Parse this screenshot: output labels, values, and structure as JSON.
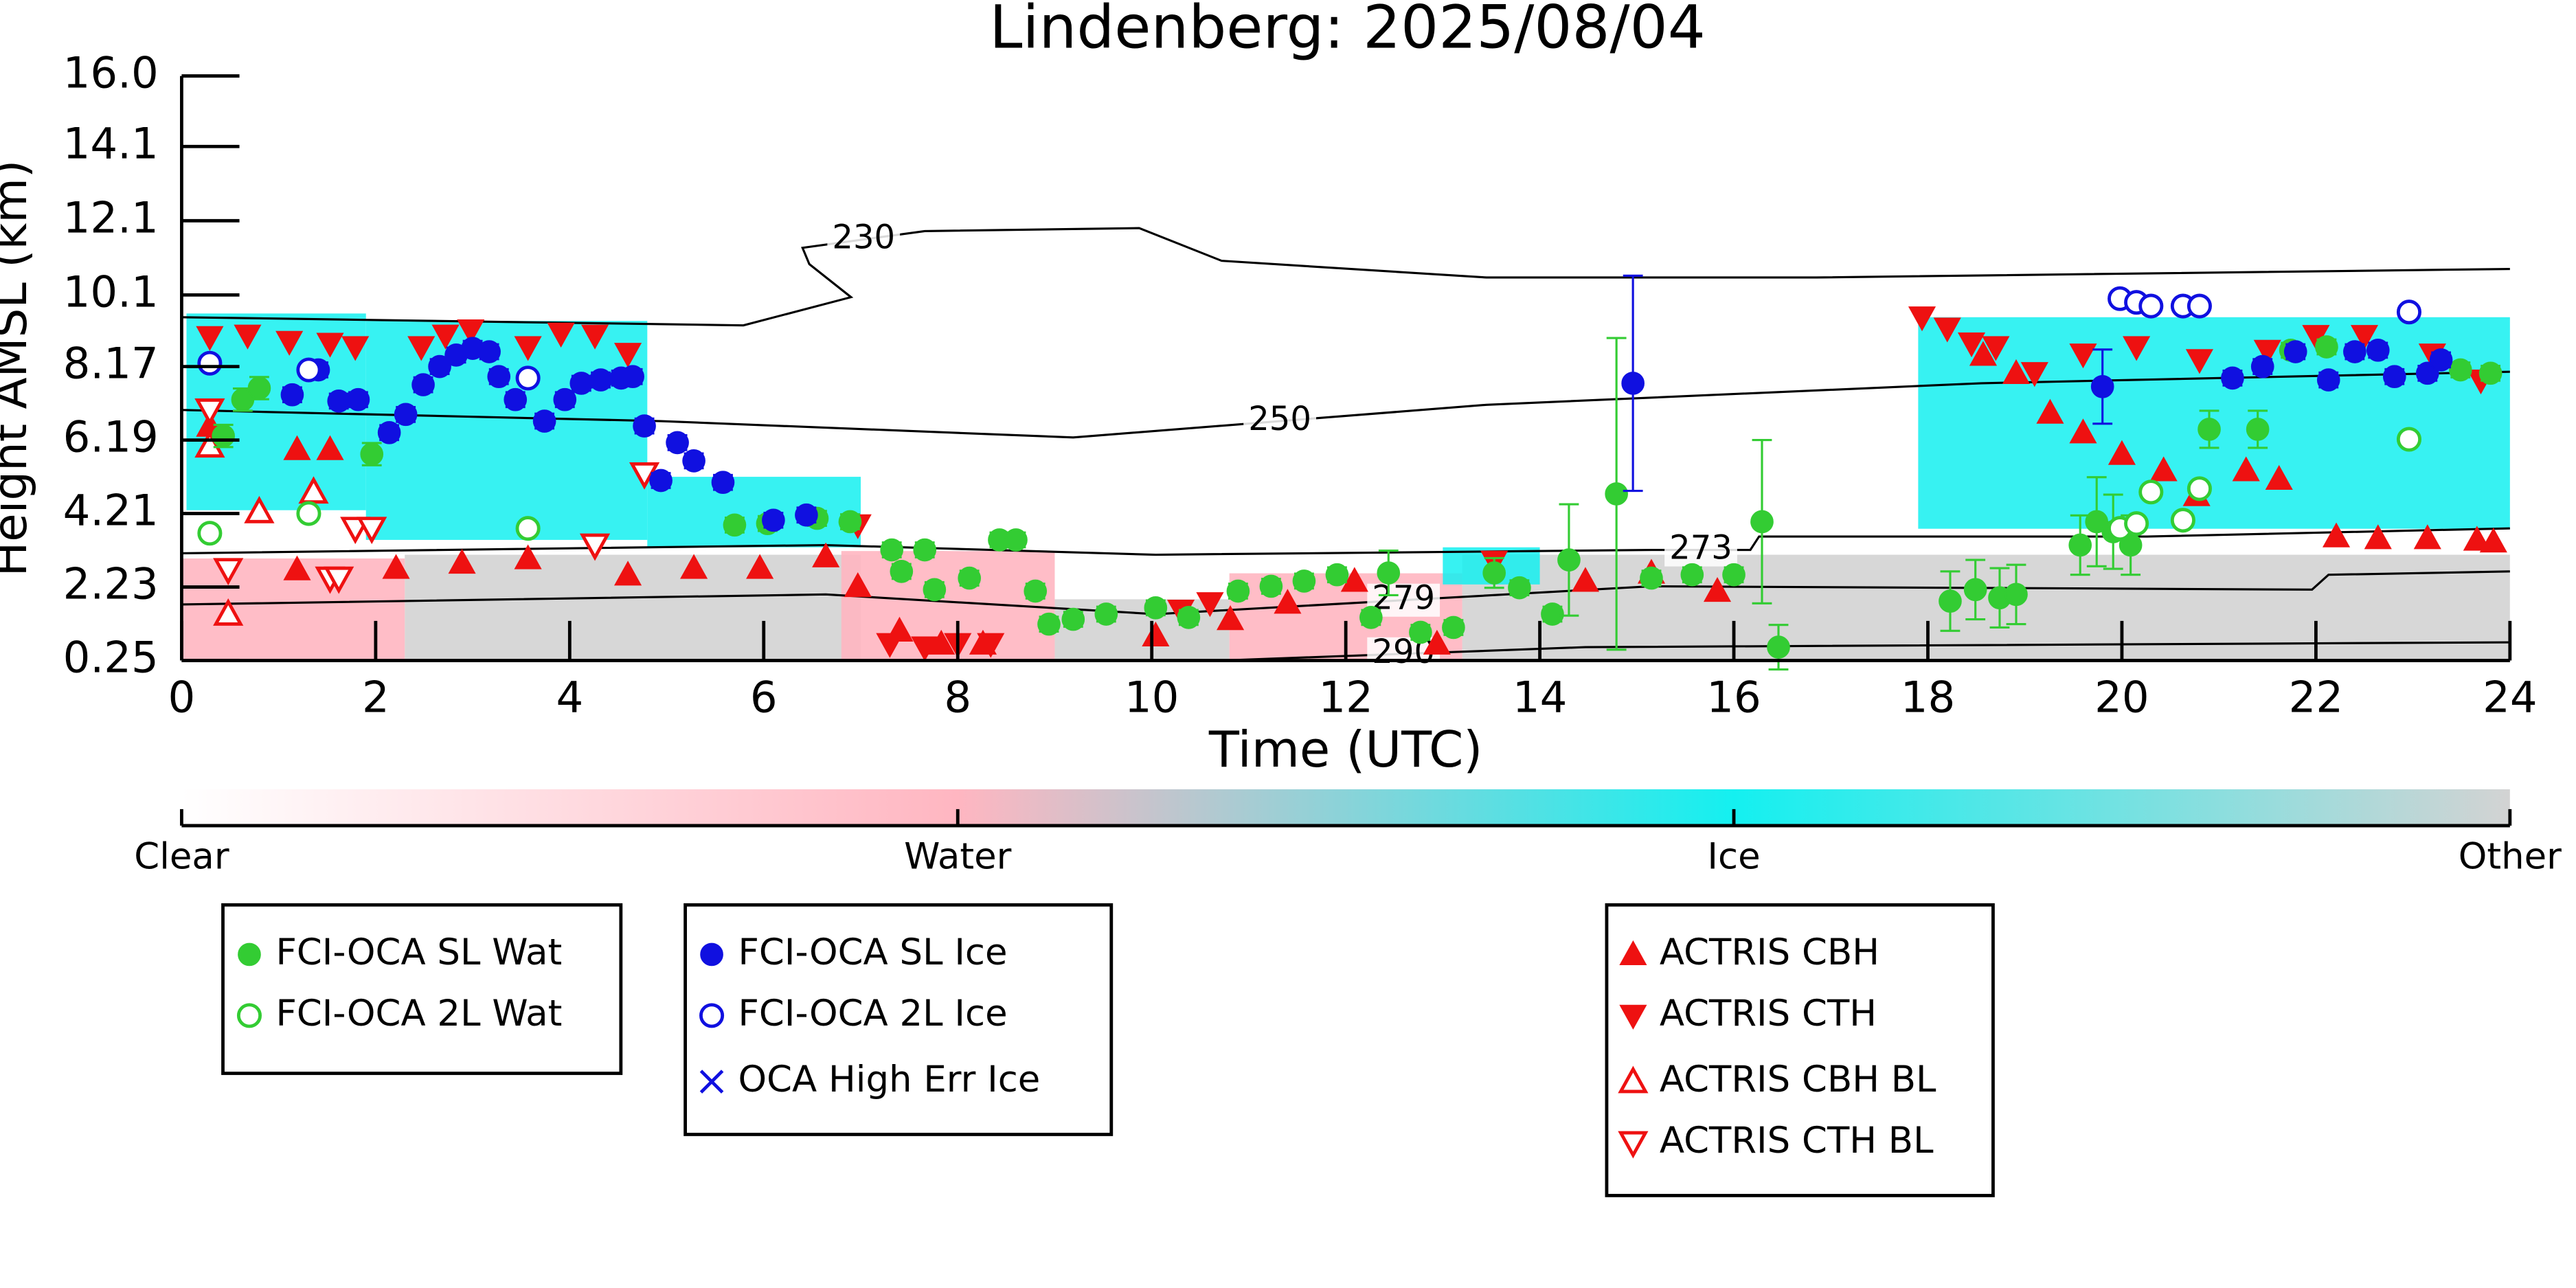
{
  "chart_data": {
    "type": "scatter",
    "title": "Lindenberg: 2025/08/04",
    "x_label": "Time (UTC)",
    "y_label": "Height AMSL (km)",
    "xlim": [
      0,
      24
    ],
    "xticks": [
      0,
      2,
      4,
      6,
      8,
      10,
      12,
      14,
      16,
      18,
      20,
      22,
      24
    ],
    "ylim": [
      0.25,
      16
    ],
    "yticks": [
      0.25,
      2.23,
      4.21,
      6.19,
      8.17,
      {
        "value": 10.1,
        "label": "10.1"
      },
      {
        "value": 12.1,
        "label": "12.1"
      },
      {
        "value": 14.1,
        "label": "14.1"
      },
      {
        "value": 16,
        "label": "16.0"
      }
    ],
    "colorbar": [
      {
        "label": "Clear",
        "color": "#ffffff"
      },
      {
        "label": "Water",
        "color": "#ffb6c1"
      },
      {
        "label": "Ice",
        "color": "#14f0f0"
      },
      {
        "label": "Other",
        "color": "#d3d3d3"
      }
    ],
    "cloud_mask": [
      {
        "class": 3,
        "x": [
          2.3,
          7.0
        ],
        "y": [
          0.25,
          3.1
        ]
      },
      {
        "class": 3,
        "x": [
          9.0,
          10.8
        ],
        "y": [
          0.25,
          1.9
        ]
      },
      {
        "class": 3,
        "x": [
          13.2,
          24
        ],
        "y": [
          0.25,
          3.1
        ]
      },
      {
        "class": 1,
        "x": [
          0,
          2.3
        ],
        "y": [
          0.25,
          3.0
        ]
      },
      {
        "class": 1,
        "x": [
          6.8,
          9.0
        ],
        "y": [
          0.25,
          3.2
        ]
      },
      {
        "class": 1,
        "x": [
          10.8,
          13.2
        ],
        "y": [
          0.25,
          2.6
        ]
      },
      {
        "class": 2,
        "x": [
          0.05,
          1.9
        ],
        "y": [
          4.3,
          9.6
        ]
      },
      {
        "class": 2,
        "x": [
          1.9,
          4.8
        ],
        "y": [
          3.5,
          9.4
        ]
      },
      {
        "class": 2,
        "x": [
          4.8,
          7.0
        ],
        "y": [
          3.3,
          5.2
        ]
      },
      {
        "class": 2,
        "x": [
          13.0,
          14.0
        ],
        "y": [
          2.3,
          3.3
        ]
      },
      {
        "class": 2,
        "x": [
          17.9,
          24
        ],
        "y": [
          3.8,
          9.5
        ]
      }
    ],
    "contours": [
      {
        "level": 230,
        "x": [
          0,
          5.79,
          6.9,
          6.47,
          6.4,
          7.66,
          9.87,
          10.72,
          13.45,
          16.85,
          24
        ],
        "y": [
          9.5,
          9.28,
          10.04,
          10.93,
          11.37,
          11.82,
          11.9,
          11.02,
          10.57,
          10.57,
          10.8
        ]
      },
      {
        "level": 250,
        "x": [
          0,
          4.94,
          9.19,
          13.45,
          18.55,
          24
        ],
        "y": [
          7.0,
          6.7,
          6.26,
          7.14,
          7.72,
          8.03
        ]
      },
      {
        "level": 273,
        "x": [
          0,
          6.64,
          10.04,
          15.15,
          16.17,
          16.26,
          20.26,
          24
        ],
        "y": [
          3.14,
          3.36,
          3.1,
          3.23,
          3.23,
          3.59,
          3.59,
          3.81
        ]
      },
      {
        "level": 279,
        "x": [
          0,
          6.64,
          10.04,
          15.15,
          21.96,
          22.13,
          24
        ],
        "y": [
          1.76,
          2.03,
          1.5,
          2.25,
          2.16,
          2.56,
          2.65
        ]
      },
      {
        "level": 290,
        "x": [
          10.72,
          14.47,
          24
        ],
        "y": [
          0.25,
          0.61,
          0.74
        ]
      }
    ],
    "series": [
      {
        "name": "FCI-OCA SL Wat",
        "color": "#33cc33",
        "marker": "circle",
        "legend_group": 0,
        "x": [
          0.43,
          0.63,
          0.8,
          1.96,
          5.7,
          6.04,
          6.55,
          6.89,
          7.32,
          7.66,
          7.42,
          7.76,
          8.12,
          8.43,
          8.6,
          8.8,
          8.94,
          9.19,
          9.53,
          10.04,
          10.38,
          10.89,
          11.23,
          11.57,
          11.91,
          12.26,
          12.44,
          12.77,
          13.11,
          13.53,
          13.79,
          14.13,
          14.3,
          14.79,
          15.15,
          15.57,
          16.0,
          16.29,
          16.46,
          18.23,
          18.49,
          18.74,
          18.91,
          19.57,
          19.74,
          19.91,
          20.09,
          20.9,
          21.4,
          21.74,
          22.11,
          23.49,
          23.8
        ],
        "y": [
          6.3,
          7.28,
          7.59,
          5.81,
          3.9,
          3.94,
          4.08,
          3.99,
          3.23,
          3.23,
          2.65,
          2.16,
          2.47,
          3.5,
          3.5,
          2.12,
          1.23,
          1.36,
          1.5,
          1.67,
          1.41,
          2.12,
          2.25,
          2.39,
          2.56,
          1.41,
          2.61,
          1.01,
          1.14,
          2.61,
          2.21,
          1.5,
          2.96,
          4.74,
          2.47,
          2.56,
          2.56,
          3.99,
          0.61,
          1.85,
          2.16,
          1.94,
          2.03,
          3.36,
          3.99,
          3.72,
          3.36,
          6.48,
          6.48,
          8.61,
          8.7,
          8.08,
          7.99
        ],
        "errors": [
          0.3,
          0.3,
          0.3,
          0.3,
          0.2,
          0.2,
          0.2,
          0.2,
          0.2,
          0.2,
          0.2,
          0.2,
          0.2,
          0.2,
          0.2,
          0.2,
          0.2,
          0.2,
          0.2,
          0.2,
          0.2,
          0.2,
          0.2,
          0.2,
          0.2,
          0.2,
          0.6,
          0.2,
          0.2,
          0.4,
          0.2,
          0.2,
          1.5,
          4.2,
          0.2,
          0.2,
          0.2,
          2.2,
          0.6,
          0.8,
          0.8,
          0.8,
          0.8,
          0.8,
          1.2,
          1.0,
          0.8,
          0.5,
          0.5,
          0.2,
          0.2,
          0.2,
          0.2
        ]
      },
      {
        "name": "FCI-OCA 2L Wat",
        "color": "#33cc33",
        "marker": "circle-open",
        "legend_group": 0,
        "x": [
          0.29,
          1.31,
          3.57,
          19.98,
          20.15,
          20.3,
          20.63,
          20.8,
          22.96
        ],
        "y": [
          3.68,
          4.21,
          3.81,
          3.81,
          3.94,
          4.79,
          4.03,
          4.88,
          6.21
        ]
      },
      {
        "name": "FCI-OCA SL Ice",
        "color": "#1010e0",
        "marker": "circle",
        "legend_group": 1,
        "x": [
          1.14,
          1.41,
          1.62,
          1.82,
          2.14,
          2.31,
          2.49,
          2.66,
          2.83,
          3.0,
          3.17,
          3.27,
          3.44,
          3.74,
          3.95,
          4.12,
          4.32,
          4.53,
          4.65,
          4.77,
          4.94,
          5.11,
          5.28,
          5.58,
          6.1,
          6.44,
          14.96,
          19.8,
          21.14,
          21.45,
          21.79,
          22.13,
          22.4,
          22.64,
          22.81,
          23.15,
          23.29
        ],
        "y": [
          7.41,
          8.08,
          7.24,
          7.28,
          6.39,
          6.88,
          7.68,
          8.17,
          8.48,
          8.66,
          8.57,
          7.9,
          7.28,
          6.7,
          7.28,
          7.72,
          7.81,
          7.86,
          7.9,
          6.57,
          5.1,
          6.12,
          5.63,
          5.05,
          4.03,
          4.17,
          7.72,
          7.63,
          7.86,
          8.17,
          8.57,
          7.81,
          8.57,
          8.61,
          7.9,
          7.99,
          8.35
        ],
        "errors": [
          0.2,
          0.2,
          0.2,
          0.2,
          0.2,
          0.2,
          0.2,
          0.2,
          0.2,
          0.2,
          0.2,
          0.2,
          0.2,
          0.2,
          0.2,
          0.2,
          0.2,
          0.2,
          0.2,
          0.2,
          0.2,
          0.2,
          0.2,
          0.2,
          0.2,
          0.2,
          2.9,
          1.0,
          0.2,
          0.2,
          0.2,
          0.2,
          0.2,
          0.2,
          0.2,
          0.2,
          0.2
        ]
      },
      {
        "name": "FCI-OCA 2L Ice",
        "color": "#1010e0",
        "marker": "circle-open",
        "legend_group": 1,
        "x": [
          0.29,
          1.31,
          3.57,
          19.98,
          20.15,
          20.3,
          20.63,
          20.8,
          22.96
        ],
        "y": [
          8.26,
          8.08,
          7.86,
          10.0,
          9.9,
          9.8,
          9.8,
          9.8,
          9.64
        ]
      },
      {
        "name": "OCA High Err Ice",
        "color": "#1010e0",
        "marker": "x",
        "legend_group": 1,
        "x": [],
        "y": []
      },
      {
        "name": "ACTRIS CBH",
        "color": "#ee1111",
        "marker": "triangle-up",
        "legend_group": 2,
        "x": [
          0.29,
          1.19,
          1.53,
          1.19,
          2.21,
          2.89,
          3.57,
          4.6,
          5.28,
          5.96,
          6.64,
          6.97,
          7.4,
          7.83,
          8.26,
          10.04,
          10.81,
          11.4,
          12.09,
          12.94,
          14.47,
          15.15,
          15.83,
          18.57,
          18.91,
          19.26,
          19.6,
          20.0,
          20.43,
          20.77,
          21.28,
          21.62,
          22.21,
          22.64,
          23.15,
          23.66,
          23.83
        ],
        "y": [
          6.57,
          5.94,
          5.94,
          2.7,
          2.74,
          2.88,
          3.0,
          2.56,
          2.74,
          2.74,
          3.05,
          2.25,
          1.05,
          0.7,
          0.7,
          0.92,
          1.36,
          1.8,
          2.39,
          0.7,
          2.39,
          2.61,
          2.12,
          8.48,
          7.99,
          6.92,
          6.39,
          5.81,
          5.37,
          4.7,
          5.37,
          5.14,
          3.59,
          3.54,
          3.54,
          3.5,
          3.45
        ]
      },
      {
        "name": "ACTRIS CTH",
        "color": "#ee1111",
        "marker": "triangle-down",
        "legend_group": 2,
        "x": [
          0.29,
          0.68,
          1.11,
          1.53,
          1.79,
          2.47,
          2.72,
          2.98,
          3.57,
          3.91,
          4.26,
          4.6,
          6.97,
          7.3,
          7.66,
          8.0,
          8.34,
          10.3,
          10.6,
          13.53,
          17.94,
          18.2,
          18.45,
          18.7,
          19.1,
          19.6,
          20.15,
          20.8,
          21.5,
          22.0,
          22.5,
          23.2,
          23.7
        ],
        "y": [
          8.97,
          9.01,
          8.84,
          8.79,
          8.7,
          8.7,
          9.01,
          9.15,
          8.7,
          9.06,
          9.01,
          8.52,
          3.9,
          0.7,
          0.61,
          0.7,
          0.7,
          1.6,
          1.8,
          2.92,
          9.5,
          9.2,
          8.8,
          8.7,
          8.0,
          8.5,
          8.7,
          8.35,
          8.6,
          9.0,
          9.0,
          8.5,
          7.8
        ]
      },
      {
        "name": "ACTRIS CBH BL",
        "color": "#ee1111",
        "marker": "triangle-up-open",
        "legend_group": 2,
        "x": [
          0.29,
          0.48,
          0.8,
          1.36
        ],
        "y": [
          6.03,
          1.5,
          4.26,
          4.79
        ]
      },
      {
        "name": "ACTRIS CTH BL",
        "color": "#ee1111",
        "marker": "triangle-down-open",
        "legend_group": 2,
        "x": [
          0.29,
          0.48,
          1.53,
          1.62,
          1.79,
          1.96,
          4.26,
          4.77
        ],
        "y": [
          7.0,
          2.7,
          2.47,
          2.47,
          3.81,
          3.81,
          3.36,
          5.28
        ]
      }
    ]
  }
}
